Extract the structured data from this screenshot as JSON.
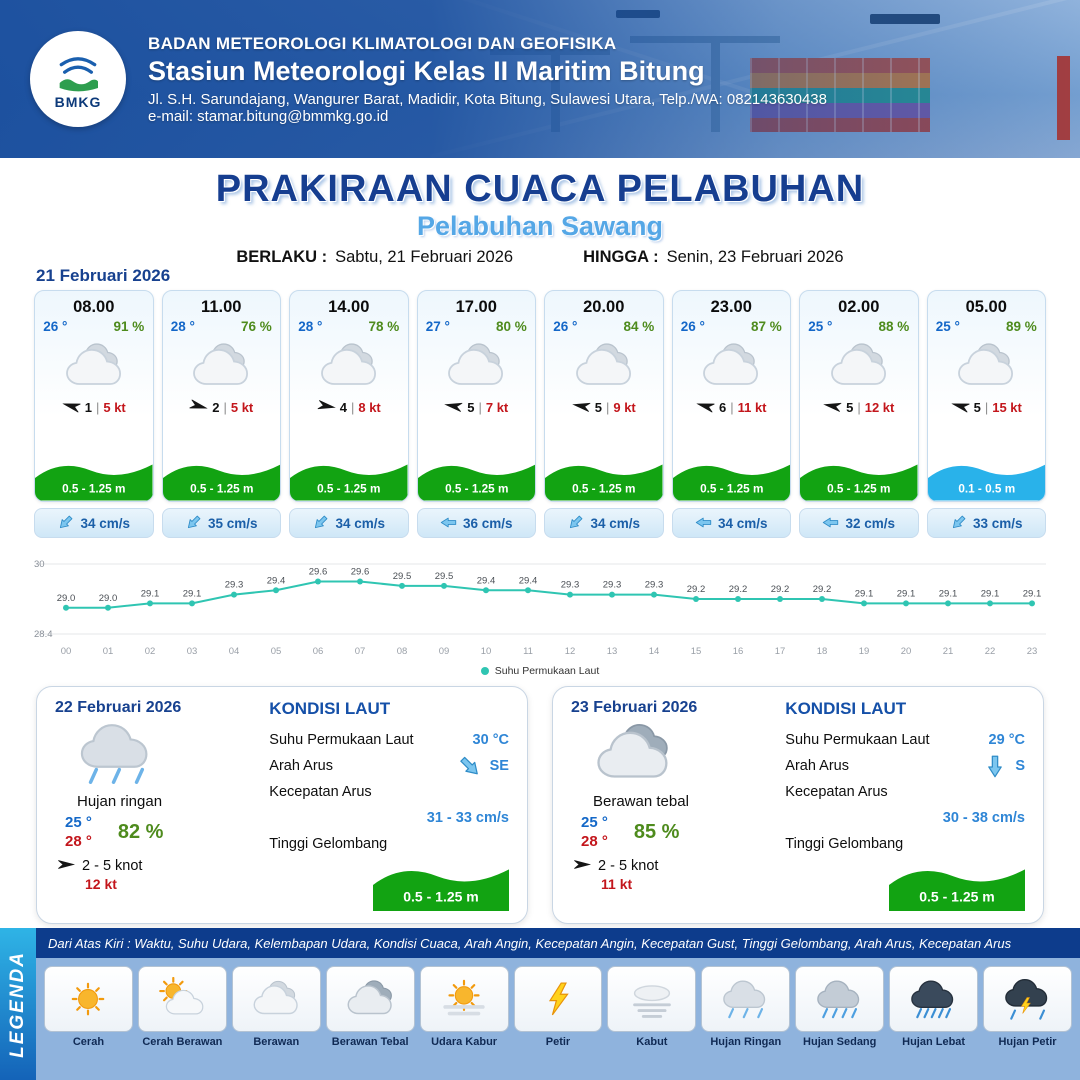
{
  "header": {
    "logo_text": "BMKG",
    "org": "BADAN METEOROLOGI KLIMATOLOGI DAN GEOFISIKA",
    "station": "Stasiun Meteorologi Kelas II Maritim Bitung",
    "address": "Jl. S.H. Sarundajang, Wangurer Barat, Madidir, Kota Bitung, Sulawesi Utara, Telp./WA: 082143630438",
    "email": "e-mail: stamar.bitung@bmmkg.go.id"
  },
  "title": {
    "main": "PRAKIRAAN CUACA PELABUHAN",
    "subtitle": "Pelabuhan Sawang",
    "berlaku_label": "BERLAKU :",
    "berlaku_value": "Sabtu, 21 Februari 2026",
    "hingga_label": "HINGGA :",
    "hingga_value": "Senin, 23 Februari 2026"
  },
  "day1": {
    "date": "21 Februari 2026",
    "cards": [
      {
        "time": "08.00",
        "temp": "26 °",
        "rh": "91 %",
        "icon": "cloud",
        "wind_rot": 195,
        "wind_val": "1",
        "wind_kt": "5 kt",
        "wave": "0.5 - 1.25 m",
        "wave_color": "#12a312",
        "current_rot": 135,
        "current": "34 cm/s"
      },
      {
        "time": "11.00",
        "temp": "28 °",
        "rh": "76 %",
        "icon": "cloud",
        "wind_rot": 15,
        "wind_val": "2",
        "wind_kt": "5 kt",
        "wave": "0.5 - 1.25 m",
        "wave_color": "#12a312",
        "current_rot": 135,
        "current": "35 cm/s"
      },
      {
        "time": "14.00",
        "temp": "28 °",
        "rh": "78 %",
        "icon": "cloud",
        "wind_rot": 10,
        "wind_val": "4",
        "wind_kt": "8 kt",
        "wave": "0.5 - 1.25 m",
        "wave_color": "#12a312",
        "current_rot": 135,
        "current": "34 cm/s"
      },
      {
        "time": "17.00",
        "temp": "27 °",
        "rh": "80 %",
        "icon": "cloud",
        "wind_rot": 190,
        "wind_val": "5",
        "wind_kt": "7 kt",
        "wave": "0.5 - 1.25 m",
        "wave_color": "#12a312",
        "current_rot": 180,
        "current": "36 cm/s"
      },
      {
        "time": "20.00",
        "temp": "26 °",
        "rh": "84 %",
        "icon": "cloud",
        "wind_rot": 190,
        "wind_val": "5",
        "wind_kt": "9 kt",
        "wave": "0.5 - 1.25 m",
        "wave_color": "#12a312",
        "current_rot": 135,
        "current": "34 cm/s"
      },
      {
        "time": "23.00",
        "temp": "26 °",
        "rh": "87 %",
        "icon": "cloud",
        "wind_rot": 195,
        "wind_val": "6",
        "wind_kt": "11 kt",
        "wave": "0.5 - 1.25 m",
        "wave_color": "#12a312",
        "current_rot": 180,
        "current": "34 cm/s"
      },
      {
        "time": "02.00",
        "temp": "25 °",
        "rh": "88 %",
        "icon": "cloud",
        "wind_rot": 190,
        "wind_val": "5",
        "wind_kt": "12 kt",
        "wave": "0.5 - 1.25 m",
        "wave_color": "#12a312",
        "current_rot": 180,
        "current": "32 cm/s"
      },
      {
        "time": "05.00",
        "temp": "25 °",
        "rh": "89 %",
        "icon": "cloud",
        "wind_rot": 195,
        "wind_val": "5",
        "wind_kt": "15 kt",
        "wave": "0.1 - 0.5 m",
        "wave_color": "#29b2ea",
        "current_rot": 135,
        "current": "33 cm/s"
      }
    ]
  },
  "chart_data": {
    "type": "line",
    "title": "Suhu Permukaan Laut",
    "legend": "Suhu Permukaan Laut",
    "x": [
      "00",
      "01",
      "02",
      "03",
      "04",
      "05",
      "06",
      "07",
      "08",
      "09",
      "10",
      "11",
      "12",
      "13",
      "14",
      "15",
      "16",
      "17",
      "18",
      "19",
      "20",
      "21",
      "22",
      "23"
    ],
    "values": [
      29.0,
      29.0,
      29.1,
      29.1,
      29.3,
      29.4,
      29.6,
      29.6,
      29.5,
      29.5,
      29.4,
      29.4,
      29.3,
      29.3,
      29.3,
      29.2,
      29.2,
      29.2,
      29.2,
      29.1,
      29.1,
      29.1,
      29.1,
      29.1
    ],
    "ylim": [
      28.4,
      30
    ],
    "line_color": "#2fc5b2",
    "xlabel": "",
    "ylabel": ""
  },
  "day_cards": [
    {
      "date": "22 Februari 2026",
      "icon": "rain-light",
      "condition": "Hujan ringan",
      "temp_min": "25 °",
      "temp_max": "28 °",
      "rh": "82 %",
      "wind": "2  - 5 knot",
      "wind_rot": 0,
      "gust": "12 kt",
      "sea": {
        "title": "KONDISI LAUT",
        "sst_label": "Suhu Permukaan Laut",
        "sst": "30 °C",
        "dir_label": "Arah Arus",
        "dir": "SE",
        "dir_rot": 45,
        "speed_label": "Kecepatan Arus",
        "speed": "31 - 33 cm/s",
        "wave_label": "Tinggi Gelombang",
        "wave": "0.5 - 1.25 m",
        "wave_color": "#12a312"
      }
    },
    {
      "date": "23 Februari 2026",
      "icon": "clouds",
      "condition": "Berawan tebal",
      "temp_min": "25 °",
      "temp_max": "28 °",
      "rh": "85 %",
      "wind": "2  - 5 knot",
      "wind_rot": 0,
      "gust": "11 kt",
      "sea": {
        "title": "KONDISI LAUT",
        "sst_label": "Suhu Permukaan Laut",
        "sst": "29 °C",
        "dir_label": "Arah Arus",
        "dir": "S",
        "dir_rot": 90,
        "speed_label": "Kecepatan Arus",
        "speed": "30 - 38 cm/s",
        "wave_label": "Tinggi Gelombang",
        "wave": "0.5 - 1.25 m",
        "wave_color": "#12a312"
      }
    }
  ],
  "legend": {
    "vertical_label": "LEGENDA",
    "description": "Dari Atas Kiri : Waktu, Suhu Udara, Kelembapan Udara, Kondisi Cuaca, Arah Angin, Kecepatan Angin, Kecepatan Gust, Tinggi Gelombang, Arah Arus, Kecepatan Arus",
    "items": [
      {
        "label": "Cerah",
        "icon": "sun"
      },
      {
        "label": "Cerah Berawan",
        "icon": "sun-cloud"
      },
      {
        "label": "Berawan",
        "icon": "cloud"
      },
      {
        "label": "Berawan Tebal",
        "icon": "clouds"
      },
      {
        "label": "Udara Kabur",
        "icon": "hazy"
      },
      {
        "label": "Petir",
        "icon": "lightning"
      },
      {
        "label": "Kabut",
        "icon": "fog"
      },
      {
        "label": "Hujan Ringan",
        "icon": "rain-light"
      },
      {
        "label": "Hujan Sedang",
        "icon": "rain-medium"
      },
      {
        "label": "Hujan Lebat",
        "icon": "rain-heavy"
      },
      {
        "label": "Hujan Petir",
        "icon": "storm"
      }
    ]
  }
}
